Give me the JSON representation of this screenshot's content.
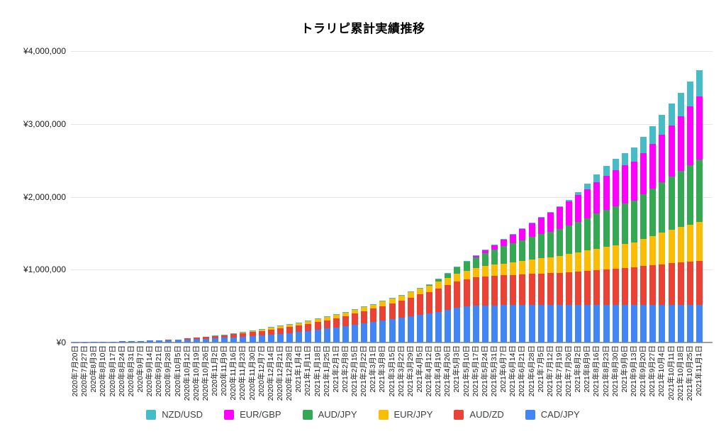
{
  "title": "トラリピ累計実績推移",
  "colors": {
    "background": "#ffffff",
    "grid": "#e6e6e6",
    "axis": "#9e9e9e",
    "tick_text": "#1a1a1a",
    "legend_text": "#3c4043"
  },
  "chart_data": {
    "type": "bar",
    "stacked": true,
    "title": "トラリピ累計実績推移",
    "xlabel": "",
    "ylabel": "",
    "grid": true,
    "legend_position": "bottom",
    "x_label_rotation": -90,
    "ylim": [
      0,
      4000000
    ],
    "y_ticks": [
      {
        "value": 0,
        "label": "¥0"
      },
      {
        "value": 1000000,
        "label": "¥1,000,000"
      },
      {
        "value": 2000000,
        "label": "¥2,000,000"
      },
      {
        "value": 3000000,
        "label": "¥3,000,000"
      },
      {
        "value": 4000000,
        "label": "¥4,000,000"
      }
    ],
    "categories": [
      "2020年7月20日",
      "2020年7月27日",
      "2020年8月3日",
      "2020年8月10日",
      "2020年8月17日",
      "2020年8月24日",
      "2020年8月31日",
      "2020年9月7日",
      "2020年9月14日",
      "2020年9月21日",
      "2020年9月28日",
      "2020年10月5日",
      "2020年10月12日",
      "2020年10月19日",
      "2020年10月26日",
      "2020年11月2日",
      "2020年11月9日",
      "2020年11月16日",
      "2020年11月23日",
      "2020年11月30日",
      "2020年12月7日",
      "2020年12月14日",
      "2020年12月21日",
      "2020年12月28日",
      "2021年1月4日",
      "2021年1月11日",
      "2021年1月18日",
      "2021年1月25日",
      "2021年2月1日",
      "2021年2月8日",
      "2021年2月15日",
      "2021年2月22日",
      "2021年3月1日",
      "2021年3月8日",
      "2021年3月15日",
      "2021年3月22日",
      "2021年3月29日",
      "2021年4月5日",
      "2021年4月12日",
      "2021年4月19日",
      "2021年4月26日",
      "2021年5月3日",
      "2021年5月10日",
      "2021年5月17日",
      "2021年5月24日",
      "2021年5月31日",
      "2021年6月7日",
      "2021年6月14日",
      "2021年6月21日",
      "2021年6月28日",
      "2021年7月5日",
      "2021年7月12日",
      "2021年7月19日",
      "2021年7月26日",
      "2021年8月2日",
      "2021年8月9日",
      "2021年8月16日",
      "2021年8月23日",
      "2021年8月30日",
      "2021年9月6日",
      "2021年9月13日",
      "2021年9月20日",
      "2021年9月27日",
      "2021年10月4日",
      "2021年10月11日",
      "2021年10月18日",
      "2021年10月25日",
      "2021年11月1日"
    ],
    "series_note": "series listed bottom-to-top of the stack; values are cumulative yen, estimated from bar heights",
    "series": [
      {
        "name": "CAD/JPY",
        "color": "#4285F4",
        "values": [
          3000,
          5000,
          8000,
          11000,
          14000,
          17000,
          20000,
          23000,
          26000,
          29000,
          32000,
          36000,
          40000,
          45000,
          50000,
          57000,
          64000,
          72000,
          80000,
          89000,
          98000,
          108000,
          118000,
          130000,
          145000,
          160000,
          175000,
          190000,
          205000,
          225000,
          245000,
          262000,
          280000,
          300000,
          320000,
          340000,
          360000,
          380000,
          395000,
          420000,
          450000,
          480000,
          495000,
          505000,
          510000,
          511000,
          512000,
          513000,
          514000,
          515000,
          515000,
          515000,
          516000,
          516000,
          517000,
          517000,
          518000,
          518000,
          518000,
          519000,
          519000,
          519000,
          520000,
          520000,
          520000,
          520000,
          520000,
          520000
        ]
      },
      {
        "name": "AUD/ZD",
        "color": "#EA4335",
        "values": [
          0,
          0,
          0,
          0,
          0,
          0,
          0,
          0,
          0,
          0,
          3000,
          8000,
          14000,
          20000,
          26000,
          32000,
          38000,
          44000,
          50000,
          56000,
          62000,
          68000,
          74000,
          80000,
          88000,
          96000,
          105000,
          115000,
          126000,
          138000,
          152000,
          167000,
          183000,
          200000,
          218000,
          237000,
          257000,
          278000,
          300000,
          322000,
          340000,
          360000,
          375000,
          388000,
          398000,
          404000,
          410000,
          415000,
          420000,
          425000,
          430000,
          435000,
          440000,
          448000,
          456000,
          465000,
          475000,
          485000,
          495000,
          505000,
          515000,
          528000,
          541000,
          554000,
          567000,
          578000,
          590000,
          600000
        ]
      },
      {
        "name": "EUR/JPY",
        "color": "#FBBC04",
        "values": [
          0,
          0,
          0,
          0,
          0,
          0,
          0,
          0,
          0,
          0,
          0,
          0,
          0,
          0,
          0,
          0,
          0,
          0,
          8000,
          14000,
          20000,
          25000,
          28000,
          30000,
          33000,
          36000,
          39000,
          42000,
          45000,
          48000,
          51000,
          54000,
          57000,
          61000,
          65000,
          70000,
          75000,
          81000,
          88000,
          95000,
          100000,
          108000,
          116000,
          125000,
          140000,
          152000,
          163000,
          174000,
          185000,
          198000,
          210000,
          222000,
          235000,
          250000,
          265000,
          280000,
          295000,
          308000,
          320000,
          330000,
          340000,
          370000,
          400000,
          430000,
          460000,
          485000,
          510000,
          535000
        ]
      },
      {
        "name": "AUD/JPY",
        "color": "#34A853",
        "values": [
          0,
          0,
          0,
          0,
          0,
          0,
          0,
          0,
          0,
          0,
          0,
          0,
          0,
          0,
          0,
          0,
          0,
          0,
          0,
          0,
          0,
          0,
          0,
          0,
          0,
          0,
          0,
          0,
          0,
          0,
          0,
          0,
          0,
          0,
          0,
          0,
          0,
          0,
          10000,
          25000,
          50000,
          85000,
          120000,
          150000,
          180000,
          210000,
          235000,
          260000,
          285000,
          310000,
          330000,
          350000,
          370000,
          395000,
          420000,
          445000,
          480000,
          510000,
          535000,
          555000,
          575000,
          615000,
          655000,
          695000,
          735000,
          775000,
          815000,
          860000
        ]
      },
      {
        "name": "EUR/GBP",
        "color": "#FF00FF",
        "values": [
          0,
          0,
          0,
          0,
          0,
          0,
          0,
          0,
          0,
          0,
          0,
          0,
          0,
          0,
          0,
          0,
          0,
          0,
          0,
          0,
          0,
          0,
          0,
          0,
          0,
          0,
          0,
          0,
          0,
          0,
          0,
          0,
          0,
          0,
          0,
          0,
          0,
          0,
          0,
          0,
          0,
          0,
          0,
          15000,
          35000,
          60000,
          90000,
          120000,
          155000,
          190000,
          225000,
          260000,
          295000,
          330000,
          365000,
          400000,
          435000,
          470000,
          500000,
          520000,
          535000,
          570000,
          610000,
          655000,
          700000,
          750000,
          805000,
          860000
        ]
      },
      {
        "name": "NZD/USD",
        "color": "#46BDC6",
        "values": [
          0,
          0,
          0,
          0,
          0,
          0,
          0,
          0,
          0,
          0,
          0,
          0,
          0,
          0,
          0,
          5000,
          8000,
          10000,
          10000,
          10000,
          10000,
          10000,
          10000,
          10000,
          10000,
          10000,
          10000,
          10000,
          10000,
          10000,
          10000,
          10000,
          10000,
          10000,
          10000,
          10000,
          10000,
          10000,
          10000,
          10000,
          10000,
          10000,
          10000,
          10000,
          10000,
          10000,
          10000,
          10000,
          10000,
          10000,
          10000,
          10000,
          10000,
          20000,
          45000,
          70000,
          100000,
          130000,
          155000,
          175000,
          195000,
          220000,
          245000,
          270000,
          295000,
          320000,
          345000,
          367000
        ]
      }
    ],
    "legend": {
      "order": [
        "NZD/USD",
        "EUR/GBP",
        "AUD/JPY",
        "EUR/JPY",
        "AUD/ZD",
        "CAD/JPY"
      ]
    }
  }
}
